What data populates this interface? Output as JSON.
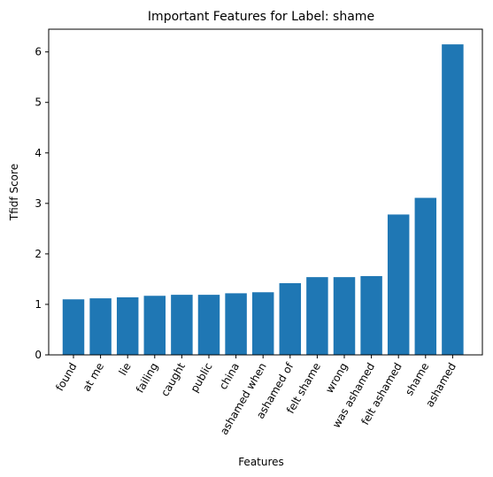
{
  "chart_data": {
    "type": "bar",
    "title": "Important Features for Label: shame",
    "xlabel": "Features",
    "ylabel": "Tfidf Score",
    "categories": [
      "found",
      "at me",
      "lie",
      "failing",
      "caught",
      "public",
      "china",
      "ashamed when",
      "ashamed of",
      "felt shame",
      "wrong",
      "was ashamed",
      "felt ashamed",
      "shame",
      "ashamed"
    ],
    "values": [
      1.1,
      1.12,
      1.14,
      1.17,
      1.19,
      1.19,
      1.22,
      1.24,
      1.42,
      1.54,
      1.54,
      1.56,
      2.78,
      3.11,
      6.15
    ],
    "yticks": [
      0,
      1,
      2,
      3,
      4,
      5,
      6
    ],
    "ylim": [
      0,
      6.45
    ],
    "grid": false,
    "legend": "none",
    "bar_color": "#1f77b4"
  }
}
